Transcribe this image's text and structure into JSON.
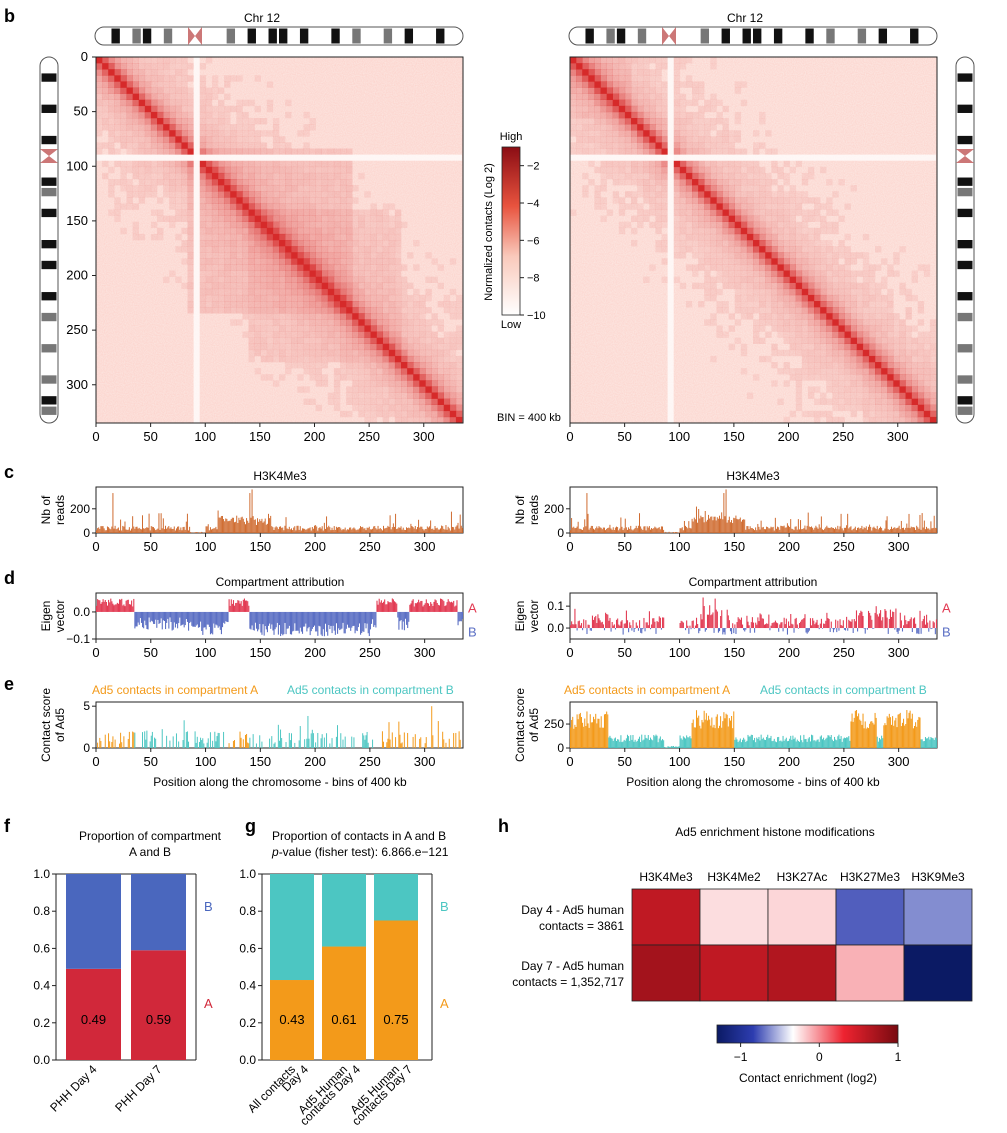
{
  "panel_letters": {
    "b": "b",
    "c": "c",
    "d": "d",
    "e": "e",
    "f": "f",
    "g": "g",
    "h": "h"
  },
  "colors": {
    "heat": "#d62a2a",
    "heat_light": "#fbe4e0",
    "h3k4": "#cf6a2e",
    "comp_a": "#e23b53",
    "comp_b": "#5b6fc4",
    "ad5_a": "#f39a1a",
    "ad5_b": "#4cc6c2",
    "bar_red": "#d1283a",
    "bar_blue": "#4a67be",
    "bar_orange": "#f39a1a",
    "bar_teal": "#4cc6c2"
  },
  "chart_data": [
    {
      "id": "b_left",
      "type": "heatmap",
      "title": "Chr 12",
      "xlim": [
        0,
        335
      ],
      "ylim": [
        0,
        335
      ],
      "xticks": [
        "0",
        "50",
        "100",
        "150",
        "200",
        "250",
        "300"
      ],
      "yticks": [
        "0",
        "50",
        "100",
        "150",
        "200",
        "250",
        "300"
      ],
      "note": "BIN = 400 kb"
    },
    {
      "id": "b_right",
      "type": "heatmap",
      "title": "Chr 12",
      "xlim": [
        0,
        335
      ],
      "xticks": [
        "0",
        "50",
        "100",
        "150",
        "200",
        "250",
        "300"
      ]
    },
    {
      "id": "b_colorbar",
      "type": "heatmap",
      "label": "Normalized contacts (Log 2)",
      "high": "High",
      "low": "Low",
      "ticks": [
        "-2",
        "-4",
        "-6",
        "-8",
        "-10"
      ],
      "range": [
        -10,
        -1
      ]
    },
    {
      "id": "c_left",
      "type": "bar",
      "title": "H3K4Me3",
      "ylabel": "Nb of reads",
      "ylim": [
        0,
        380
      ],
      "yticks": [
        "200",
        "0"
      ],
      "xticks": [
        "0",
        "50",
        "100",
        "150",
        "200",
        "250",
        "300"
      ]
    },
    {
      "id": "c_right",
      "type": "bar",
      "title": "H3K4Me3",
      "ylabel": "Nb of reads",
      "ylim": [
        0,
        380
      ],
      "yticks": [
        "200",
        "0"
      ],
      "xticks": [
        "0",
        "50",
        "100",
        "150",
        "200",
        "250",
        "300"
      ]
    },
    {
      "id": "d_left",
      "type": "bar",
      "title": "Compartment attribution",
      "ylabel": "Eigen vector",
      "ylim": [
        -0.1,
        0.07
      ],
      "yticks": [
        "0.0",
        "-0.1"
      ],
      "legend": [
        "A",
        "B"
      ],
      "xticks": [
        "0",
        "50",
        "100",
        "150",
        "200",
        "250",
        "300"
      ]
    },
    {
      "id": "d_right",
      "type": "bar",
      "title": "Compartment attribution",
      "ylabel": "Eigen vector",
      "ylim": [
        -0.05,
        0.16
      ],
      "yticks": [
        "0.1",
        "0.0"
      ],
      "legend": [
        "A",
        "B"
      ],
      "xticks": [
        "0",
        "50",
        "100",
        "150",
        "200",
        "250",
        "300"
      ]
    },
    {
      "id": "e_left",
      "type": "bar",
      "legend": [
        "Ad5 contacts in compartment A",
        "Ad5 contacts in compartment B"
      ],
      "ylabel": "Contact score of Ad5",
      "xlabel": "Position along the chromosome - bins of 400 kb",
      "ylim": [
        0,
        5.5
      ],
      "yticks": [
        "5",
        "0"
      ],
      "xticks": [
        "0",
        "50",
        "100",
        "150",
        "200",
        "250",
        "300"
      ]
    },
    {
      "id": "e_right",
      "type": "bar",
      "legend": [
        "Ad5 contacts in compartment A",
        "Ad5 contacts in compartment B"
      ],
      "ylabel": "Contact score of Ad5",
      "xlabel": "Position along the chromosome - bins of 400 kb",
      "ylim": [
        0,
        480
      ],
      "yticks": [
        "250",
        "0"
      ],
      "xticks": [
        "0",
        "50",
        "100",
        "150",
        "200",
        "250",
        "300"
      ]
    },
    {
      "id": "f",
      "type": "bar",
      "title": "Proportion of compartment A and B",
      "title_lines": [
        "Proportion of compartment",
        "A and B"
      ],
      "categories": [
        "PHH Day 4",
        "PHH Day 7"
      ],
      "series": [
        {
          "name": "A",
          "values": [
            0.49,
            0.59
          ]
        },
        {
          "name": "B",
          "values": [
            0.51,
            0.41
          ]
        }
      ],
      "value_labels": [
        "0.49",
        "0.59"
      ],
      "ylim": [
        0,
        1.0
      ],
      "yticks": [
        "1.0",
        "0.8",
        "0.6",
        "0.4",
        "0.2",
        "0.0"
      ],
      "legend": [
        "B",
        "A"
      ]
    },
    {
      "id": "g",
      "type": "bar",
      "title_lines": [
        "Proportion of contacts in A and B"
      ],
      "pvalue_prefix": "p",
      "pvalue_text": "-value (fisher test): 6.866.e−121",
      "categories": [
        [
          "All contacts",
          "Day 4"
        ],
        [
          "Ad5 Human",
          "contacts Day 4"
        ],
        [
          "Ad5 Human",
          "contacts Day 7"
        ]
      ],
      "series": [
        {
          "name": "A",
          "values": [
            0.43,
            0.61,
            0.75
          ]
        },
        {
          "name": "B",
          "values": [
            0.57,
            0.39,
            0.25
          ]
        }
      ],
      "value_labels": [
        "0.43",
        "0.61",
        "0.75"
      ],
      "ylim": [
        0,
        1.0
      ],
      "yticks": [
        "1.0",
        "0.8",
        "0.6",
        "0.4",
        "0.2",
        "0.0"
      ],
      "legend": [
        "B",
        "A"
      ]
    },
    {
      "id": "h",
      "type": "heatmap",
      "title": "Ad5 enrichment histone modifications",
      "columns": [
        "H3K4Me3",
        "H3K4Me2",
        "H3K27Ac",
        "H3K27Me3",
        "H3K9Me3"
      ],
      "rows": [
        [
          "Day 4 - Ad5 human",
          "contacts = 3861"
        ],
        [
          "Day 7 - Ad5 human",
          "contacts = 1,352,717"
        ]
      ],
      "values": [
        [
          0.75,
          0.08,
          0.1,
          -0.7,
          -0.5
        ],
        [
          0.85,
          0.75,
          0.8,
          0.2,
          -1.3
        ]
      ],
      "colorbar_ticks": [
        "−1",
        "0",
        "1"
      ],
      "colorbar_label": "Contact enrichment (log2)",
      "range": [
        -1.3,
        1
      ]
    }
  ]
}
